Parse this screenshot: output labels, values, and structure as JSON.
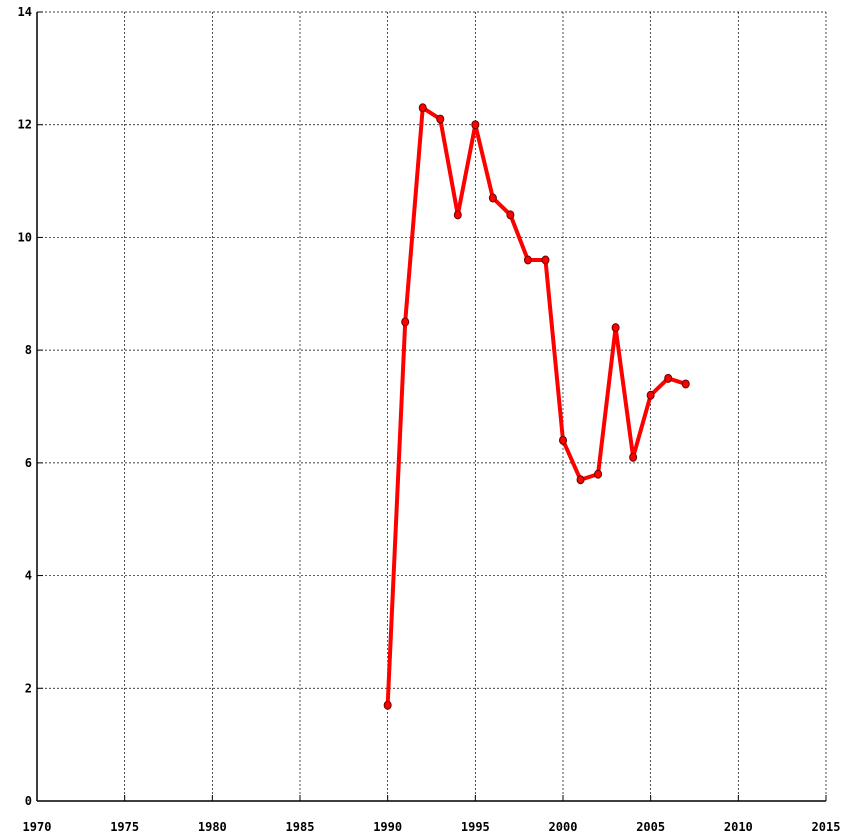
{
  "chart_data": {
    "type": "line",
    "x": [
      1990,
      1991,
      1992,
      1993,
      1994,
      1995,
      1996,
      1997,
      1998,
      1999,
      2000,
      2001,
      2002,
      2003,
      2004,
      2005,
      2006,
      2007
    ],
    "series": [
      {
        "color": "#ff0000",
        "values": [
          1.7,
          8.5,
          12.3,
          12.1,
          10.4,
          12.0,
          10.7,
          10.4,
          9.6,
          9.6,
          6.4,
          5.7,
          5.8,
          8.4,
          6.1,
          7.2,
          7.5,
          7.4
        ]
      }
    ],
    "xlim": [
      1970,
      2015
    ],
    "xticks": [
      1970,
      1975,
      1980,
      1985,
      1990,
      1995,
      2000,
      2005,
      2010,
      2015
    ],
    "ylim": [
      0,
      14
    ],
    "yticks": [
      0,
      2,
      4,
      6,
      8,
      10,
      12,
      14
    ],
    "grid": true
  }
}
